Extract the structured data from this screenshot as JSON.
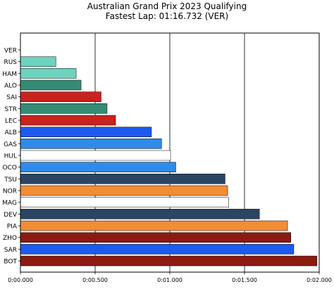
{
  "title": "Australian Grand Prix 2023 Qualifying",
  "subtitle": "Fastest Lap: 01:16.732 (VER)",
  "chart_data": {
    "type": "bar",
    "orientation": "horizontal",
    "title": "Australian Grand Prix 2023 Qualifying",
    "subtitle": "Fastest Lap: 01:16.732 (VER)",
    "xlabel": "",
    "ylabel": "",
    "x_unit": "seconds gap to fastest lap",
    "xlim": [
      0,
      0.02
    ],
    "x_ticks": [
      0,
      0.005,
      0.01,
      0.015,
      0.02
    ],
    "x_tick_labels": [
      "0:00.000",
      "0:00.500",
      "0:01.000",
      "0:01.500",
      "0:02.000"
    ],
    "grid": "vertical lines at x ticks",
    "legend": "none",
    "categories": [
      "VER",
      "RUS",
      "HAM",
      "ALO",
      "SAI",
      "STR",
      "LEC",
      "ALB",
      "GAS",
      "HUL",
      "OCO",
      "TSU",
      "NOR",
      "MAG",
      "DEV",
      "PIA",
      "ZHO",
      "SAR",
      "BOT"
    ],
    "values": [
      0.0,
      0.00237,
      0.00373,
      0.00406,
      0.0054,
      0.0058,
      0.00637,
      0.00877,
      0.00945,
      0.01005,
      0.0104,
      0.0137,
      0.01387,
      0.01395,
      0.016,
      0.01788,
      0.0181,
      0.0183,
      0.01985
    ],
    "colors": [
      "#3671C6",
      "#6CD3BF",
      "#6CD3BF",
      "#358C75",
      "#C8231E",
      "#358C75",
      "#C8231E",
      "#1C5AF0",
      "#2F8BEA",
      "#FFFFFF",
      "#2F8BEA",
      "#2B4562",
      "#F28C36",
      "#FFFFFF",
      "#2B4562",
      "#F28C36",
      "#8C1A10",
      "#1C5AF0",
      "#8C1A10"
    ]
  }
}
